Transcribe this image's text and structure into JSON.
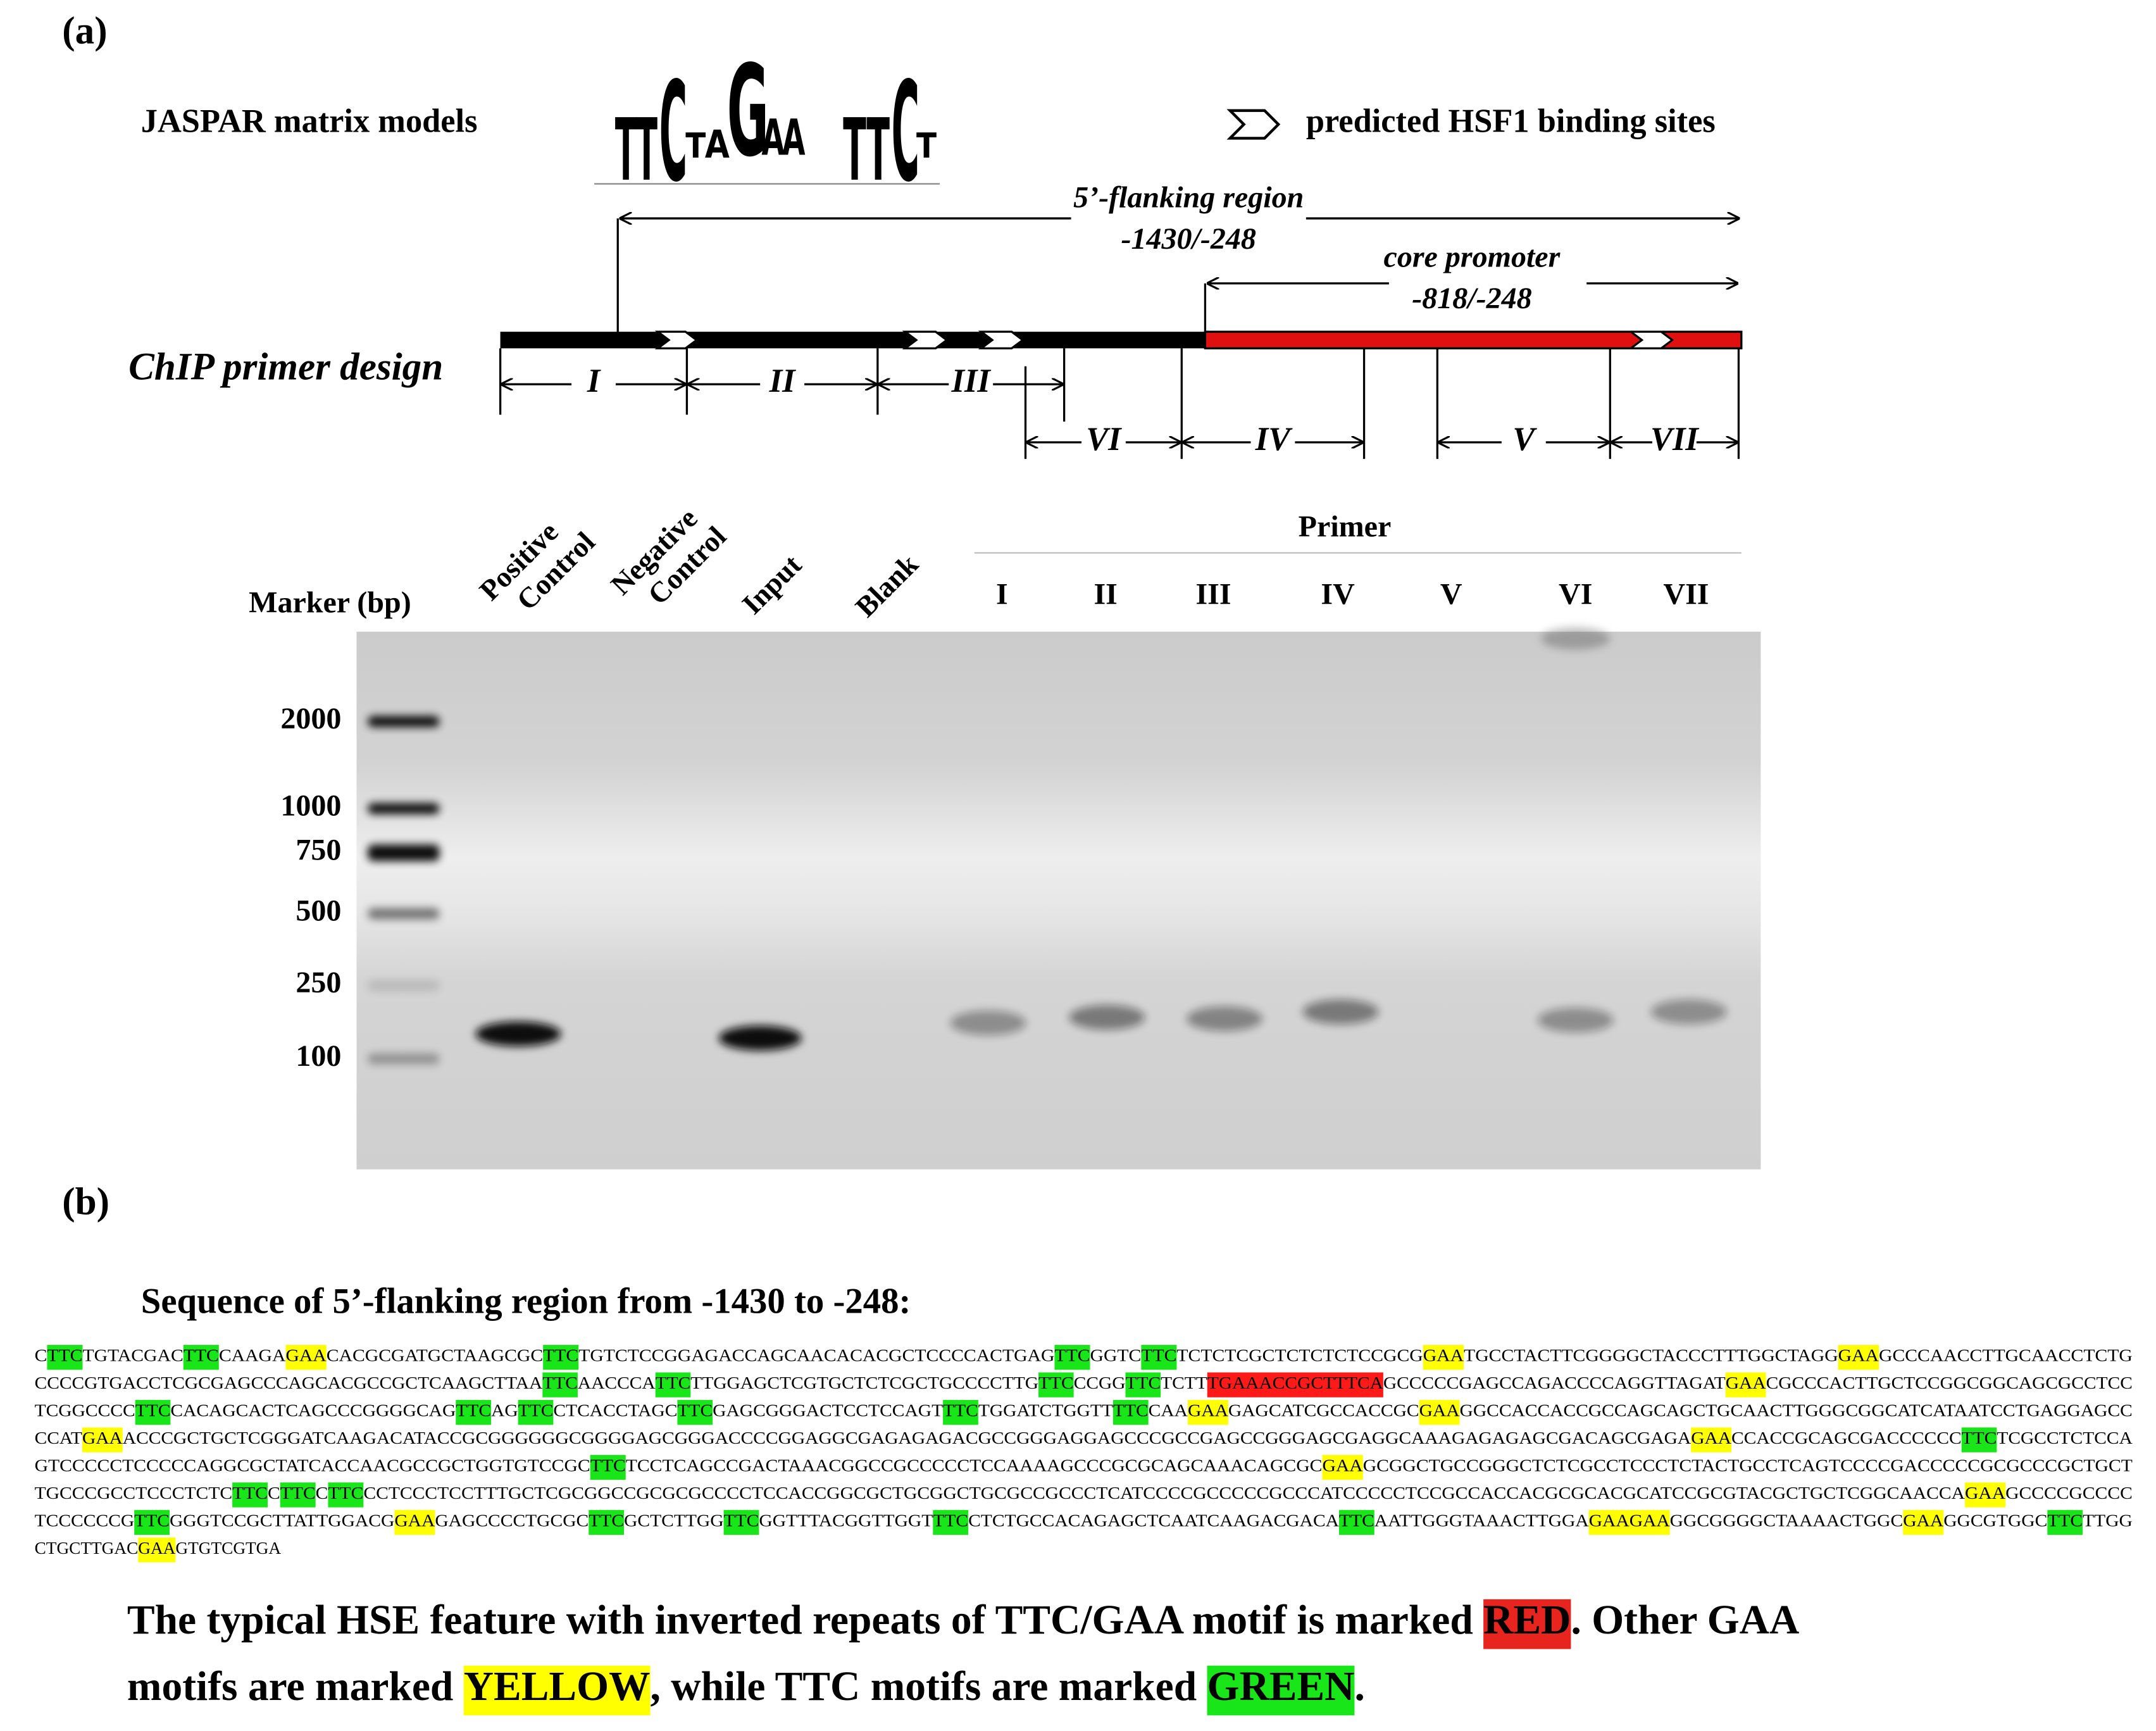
{
  "panel_a": {
    "label": "(a)",
    "legend_left": "JASPAR matrix models",
    "logo": [
      "T",
      "T",
      "C",
      "T",
      "A",
      "G",
      "A",
      "A",
      "T",
      "T",
      "C",
      "T"
    ],
    "legend_right": "predicted HSF1 binding sites",
    "flanking": {
      "title": "5’-flanking region",
      "range": "-1430/-248"
    },
    "core": {
      "title": "core promoter",
      "range": "-818/-248"
    },
    "primer_design_label": "ChIP primer design",
    "primers": [
      "I",
      "II",
      "III",
      "VI",
      "IV",
      "V",
      "VII"
    ],
    "gel": {
      "marker_title": "Marker (bp)",
      "marker_sizes": [
        2000,
        1000,
        750,
        500,
        250,
        100
      ],
      "lane_headers": [
        [
          "Positive",
          "Control"
        ],
        [
          "Negative",
          "Control"
        ],
        [
          "Input"
        ],
        [
          "Blank"
        ]
      ],
      "primer_header": "Primer",
      "primer_lanes": [
        "I",
        "II",
        "III",
        "IV",
        "V",
        "VI",
        "VII"
      ]
    }
  },
  "panel_b": {
    "label": "(b)",
    "heading": "Sequence of 5’-flanking region from -1430 to -248:",
    "sequence": [
      [
        "C",
        {
          "text": "TTC",
          "highlight": "#19e619"
        },
        "TGTACGAC",
        {
          "text": "TTC",
          "highlight": "#19e619"
        },
        "CAAGA",
        {
          "text": "GAA",
          "highlight": "#ffff00"
        },
        "CACGCGATGCTAAGCGC",
        {
          "text": "TTC",
          "highlight": "#19e619"
        },
        "TGTCTCCGGAGACCAGCAACACACGCTCCCCACTGAG",
        {
          "text": "TTC",
          "highlight": "#19e619"
        },
        "GGTC",
        {
          "text": "TTC",
          "highlight": "#19e619"
        },
        "TCTCTCGCTCTCTCTCCGCG",
        {
          "text": "GAA",
          "highlight": "#ffff00"
        },
        "TGCCTACTTCGGGGCTACCCTTTGGCTAGG",
        {
          "text": "GAA",
          "highlight": "#ffff00"
        },
        "GCCCAACCTTGCAACCTCTG"
      ],
      [
        "CCCCGTGACCTCGCGAGCCCAGCACGCCGCTCAAGCTTAA",
        {
          "text": "TTC",
          "highlight": "#19e619"
        },
        "AACCCA",
        {
          "text": "TTC",
          "highlight": "#19e619"
        },
        "TTGGAGCTCGTGCTCTCGCTGCCCCTTG",
        {
          "text": "TTC",
          "highlight": "#19e619"
        },
        "CCGG",
        {
          "text": "TTC",
          "highlight": "#19e619"
        },
        "TCTT",
        {
          "text": "TGAAACCGCTTTCA",
          "highlight": "#ff1a1a"
        },
        "GCCCCCGAGCCAGACCCCAGGTTAGAT",
        {
          "text": "GAA",
          "highlight": "#ffff00"
        },
        "CGCCCACTTGCTCCGGCGGCAGCGCCTCC"
      ],
      [
        "TCGGCCCC",
        {
          "text": "TTC",
          "highlight": "#19e619"
        },
        "CACAGCACTCAGCCCGGGGCAG",
        {
          "text": "TTC",
          "highlight": "#19e619"
        },
        "AG",
        {
          "text": "TTC",
          "highlight": "#19e619"
        },
        "CTCACCTAGC",
        {
          "text": "TTC",
          "highlight": "#19e619"
        },
        "GAGCGGGACTCCTCCAGT",
        {
          "text": "TTC",
          "highlight": "#19e619"
        },
        "TGGATCTGGTT",
        {
          "text": "TTC",
          "highlight": "#19e619"
        },
        "CAA",
        {
          "text": "GAA",
          "highlight": "#ffff00"
        },
        "GAGCATCGCCACCGC",
        {
          "text": "GAA",
          "highlight": "#ffff00"
        },
        "GGCCACCACCGCCAGCAGCTGCAACTTGGGCGGCATCATAATCCTGAGGAGCC"
      ],
      [
        "CCAT",
        {
          "text": "GAA",
          "highlight": "#ffff00"
        },
        "ACCCGCTGCTCGGGATCAAGACATACCGCGGGGGGCGGGGAGCGGGACCCCGGAGGCGAGAGAGACGCCGGGAGGAGCCCGCCGAGCCGGGAGCGAGGCAAAGAGAGAGCGACAGCGAGA",
        {
          "text": "GAA",
          "highlight": "#ffff00"
        },
        "CCACCGCAGCGACCCCCC",
        {
          "text": "TTC",
          "highlight": "#19e619"
        },
        "TCGCCTCTCCA"
      ],
      [
        "GTCCCCCTCCCCCAGGCGCTATCACCAACGCCGCTGGTGTCCGC",
        {
          "text": "TTC",
          "highlight": "#19e619"
        },
        "TCCTCAGCCGACTAAACGGCCGCCCCCTCCAAAAGCCCGCGCAGCAAACAGCGC",
        {
          "text": "GAA",
          "highlight": "#ffff00"
        },
        "GCGGCTGCCGGGCTCTCGCCTCCCTCTACTGCCTCAGTCCCCGACCCCCGCGCCCGCTGCT"
      ],
      [
        "TGCCCGCCTCCCTCTC",
        {
          "text": "TTC",
          "highlight": "#19e619"
        },
        "C",
        {
          "text": "TTC",
          "highlight": "#19e619"
        },
        "C",
        {
          "text": "TTC",
          "highlight": "#19e619"
        },
        "CCTCCCTCCTTTGCTCGCGGCCGCGCGCCCCTCCACCGGCGCTGCGGCTGCGCCGCCCTCATCCCCGCCCCCGCCCATCCCCCTCCGCCACCACGCGCACGCATCCGCGTACGCTGCTCGGCAACCA",
        {
          "text": "GAA",
          "highlight": "#ffff00"
        },
        "GCCCCGCCCC"
      ],
      [
        "TCCCCCCG",
        {
          "text": "TTC",
          "highlight": "#19e619"
        },
        "GGGTCCGCTTATTGGACG",
        {
          "text": "GAA",
          "highlight": "#ffff00"
        },
        "GAGCCCCTGCGC",
        {
          "text": "TTC",
          "highlight": "#19e619"
        },
        "GCTCTTGG",
        {
          "text": "TTC",
          "highlight": "#19e619"
        },
        "GGTTTACGGTTGGT",
        {
          "text": "TTC",
          "highlight": "#19e619"
        },
        "CTCTGCCACAGAGCTCAATCAAGACGACA",
        {
          "text": "TTC",
          "highlight": "#19e619"
        },
        "AATTGGGTAAACTTGGA",
        {
          "text": "GAAGAA",
          "highlight": "#ffff00"
        },
        "GGCGGGGCTAAAACTGGC",
        {
          "text": "GAA",
          "highlight": "#ffff00"
        },
        "GGCGTGGC",
        {
          "text": "TTC",
          "highlight": "#19e619"
        },
        "TTGG"
      ],
      [
        "CTGCTTGAC",
        {
          "text": "GAA",
          "highlight": "#ffff00"
        },
        "GTGTCGTGA"
      ]
    ],
    "caption": [
      [
        "The typical HSE feature with inverted repeats of TTC/GAA motif is marked ",
        {
          "text": "RED",
          "highlight": "#e8241f"
        },
        ". Other GAA"
      ],
      [
        "motifs are marked ",
        {
          "text": "YELLOW",
          "highlight": "#ffff00"
        },
        ", while TTC motifs are marked ",
        {
          "text": "GREEN",
          "highlight": "#19e619"
        },
        "."
      ]
    ]
  }
}
